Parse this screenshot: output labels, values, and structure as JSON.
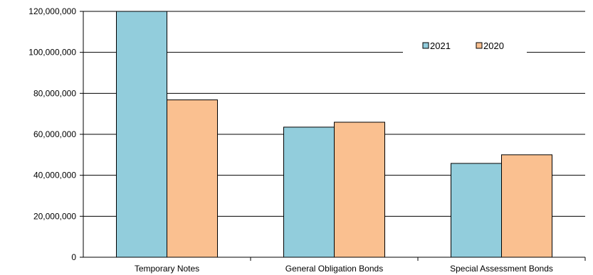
{
  "chart_data": {
    "type": "bar",
    "categories": [
      "Temporary Notes",
      "General Obligation Bonds",
      "Special Assessment Bonds"
    ],
    "series": [
      {
        "name": "2021",
        "values": [
          120000000,
          63500000,
          45800000
        ],
        "color": "#92CDDC"
      },
      {
        "name": "2020",
        "values": [
          76800000,
          65900000,
          50000000
        ],
        "color": "#FAC090"
      }
    ],
    "yticks": [
      "0",
      "20,000,000",
      "40,000,000",
      "60,000,000",
      "80,000,000",
      "100,000,000",
      "120,000,000"
    ],
    "ylim": [
      0,
      120000000
    ],
    "grid": true,
    "legend": "top-right",
    "title": "",
    "xlabel": "",
    "ylabel": ""
  }
}
